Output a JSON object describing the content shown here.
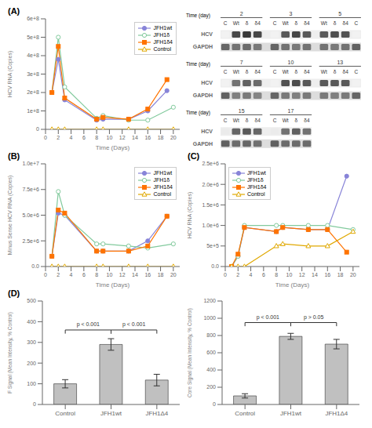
{
  "chart_data": [
    {
      "type": "line",
      "title": "(A)",
      "xlabel": "Time (Days)",
      "ylabel": "HCV RNA (Copies)",
      "xlim": [
        0,
        21
      ],
      "xticks": [
        0,
        2,
        4,
        6,
        8,
        10,
        12,
        14,
        16,
        18,
        20
      ],
      "ylim": [
        0,
        600000000.0
      ],
      "yticks": [
        0,
        {
          "value": 100000000.0,
          "label": "1e+8"
        },
        {
          "value": 200000000.0,
          "label": "2e+8"
        },
        {
          "value": 300000000.0,
          "label": "3e+8"
        },
        {
          "value": 400000000.0,
          "label": "4e+8"
        },
        {
          "value": 500000000.0,
          "label": "5e+8"
        },
        {
          "value": 600000000.0,
          "label": "6e+8"
        }
      ],
      "legend": "upper right",
      "series": [
        {
          "name": "JFH1wt",
          "marker": "circle",
          "x": [
            1,
            2,
            3,
            8,
            9,
            13,
            16,
            19
          ],
          "values": [
            200000000.0,
            380000000.0,
            160000000.0,
            50000000.0,
            55000000.0,
            55000000.0,
            100000000.0,
            210000000.0
          ]
        },
        {
          "name": "JFH1δ",
          "marker": "circle-open",
          "x": [
            1,
            2,
            3,
            8,
            9,
            13,
            16,
            20
          ],
          "values": [
            200000000.0,
            500000000.0,
            230000000.0,
            60000000.0,
            75000000.0,
            50000000.0,
            50000000.0,
            120000000.0
          ]
        },
        {
          "name": "JFH1δ4",
          "marker": "square",
          "x": [
            1,
            2,
            3,
            8,
            9,
            13,
            16,
            19
          ],
          "values": [
            200000000.0,
            450000000.0,
            170000000.0,
            55000000.0,
            65000000.0,
            55000000.0,
            110000000.0,
            270000000.0
          ]
        },
        {
          "name": "Control",
          "marker": "triangle-open",
          "x": [
            1,
            2,
            3,
            8,
            9,
            13,
            16,
            20
          ],
          "values": [
            0,
            0,
            0,
            0,
            0,
            0,
            0,
            0
          ]
        }
      ]
    },
    {
      "type": "gel",
      "title": "Time (day)",
      "groups": [
        {
          "name": "2",
          "categories": [
            "C",
            "Wt",
            "δ",
            "δ4"
          ]
        },
        {
          "name": "3",
          "categories": [
            "C",
            "Wt",
            "δ",
            "δ4"
          ]
        },
        {
          "name": "5",
          "categories": [
            "Wt",
            "δ",
            "δ4",
            "C"
          ]
        }
      ],
      "rows": [
        "HCV",
        "GAPDH"
      ],
      "cells": [
        [
          0.05,
          0.72,
          0.78,
          0.72,
          0.05,
          0.65,
          0.72,
          0.65,
          0.65,
          0.7,
          0.68,
          0.05
        ],
        [
          0.6,
          0.55,
          0.58,
          0.52,
          0.6,
          0.55,
          0.52,
          0.55,
          0.55,
          0.52,
          0.55,
          0.62
        ]
      ]
    },
    {
      "type": "gel",
      "title": "Time (day)",
      "groups": [
        {
          "name": "7",
          "categories": [
            "C",
            "Wt",
            "δ",
            "δ4"
          ]
        },
        {
          "name": "10",
          "categories": [
            "C",
            "Wt",
            "δ",
            "δ4"
          ]
        },
        {
          "name": "13",
          "categories": [
            "Wt",
            "δ",
            "δ4",
            "C"
          ]
        }
      ],
      "rows": [
        "HCV",
        "GAPDH"
      ],
      "cells": [
        [
          0.05,
          0.55,
          0.62,
          0.58,
          0.05,
          0.68,
          0.7,
          0.65,
          0.65,
          0.65,
          0.65,
          0.05
        ],
        [
          0.62,
          0.5,
          0.52,
          0.48,
          0.6,
          0.52,
          0.5,
          0.52,
          0.52,
          0.5,
          0.52,
          0.6
        ]
      ]
    },
    {
      "type": "gel",
      "title": "Time (day)",
      "groups": [
        {
          "name": "15",
          "categories": [
            "C",
            "Wt",
            "δ",
            "δ4"
          ]
        },
        {
          "name": "17",
          "categories": [
            "C",
            "Wt",
            "δ",
            "δ4"
          ]
        }
      ],
      "rows": [
        "HCV",
        "GAPDH"
      ],
      "cells": [
        [
          0.08,
          0.6,
          0.65,
          0.6,
          0.08,
          0.55,
          0.62,
          0.55
        ],
        [
          0.62,
          0.58,
          0.6,
          0.56,
          0.62,
          0.58,
          0.58,
          0.58
        ]
      ]
    },
    {
      "type": "line",
      "title": "(B)",
      "xlabel": "Time (Days)",
      "ylabel": "Minus Sense HCV RNA (Copies)",
      "xlim": [
        0,
        21
      ],
      "xticks": [
        0,
        2,
        4,
        6,
        8,
        10,
        12,
        14,
        16,
        18,
        20
      ],
      "ylim": [
        0,
        10000000.0
      ],
      "yticks": [
        {
          "value": 0,
          "label": "0.0"
        },
        {
          "value": 2500000.0,
          "label": "2.5e+6"
        },
        {
          "value": 5000000.0,
          "label": "5.0e+6"
        },
        {
          "value": 7500000.0,
          "label": "7.5e+6"
        },
        {
          "value": 10000000.0,
          "label": "1.0e+7"
        }
      ],
      "legend": "upper right",
      "series": [
        {
          "name": "JFH1wt",
          "marker": "circle",
          "x": [
            1,
            2,
            3,
            8,
            9,
            13,
            16,
            19
          ],
          "values": [
            1000000.0,
            5200000.0,
            5000000.0,
            1500000.0,
            1500000.0,
            1500000.0,
            2500000.0,
            4900000.0
          ]
        },
        {
          "name": "JFH1δ",
          "marker": "circle-open",
          "x": [
            1,
            2,
            3,
            8,
            9,
            13,
            16,
            20
          ],
          "values": [
            1000000.0,
            7300000.0,
            5000000.0,
            2200000.0,
            2200000.0,
            2000000.0,
            1800000.0,
            2200000.0
          ]
        },
        {
          "name": "JFH1δ4",
          "marker": "square",
          "x": [
            1,
            2,
            3,
            8,
            9,
            13,
            16,
            19
          ],
          "values": [
            1000000.0,
            5500000.0,
            5200000.0,
            1500000.0,
            1500000.0,
            1500000.0,
            2000000.0,
            4900000.0
          ]
        },
        {
          "name": "Control",
          "marker": "triangle-open",
          "x": [
            1,
            2,
            3,
            8,
            9,
            13,
            16,
            20
          ],
          "values": [
            0,
            0,
            0,
            0,
            0,
            0,
            0,
            0
          ]
        }
      ]
    },
    {
      "type": "line",
      "title": "(C)",
      "xlabel": "Time (Days)",
      "ylabel": "HCV RNA (Copies)",
      "xlim": [
        0,
        21
      ],
      "xticks": [
        0,
        2,
        4,
        6,
        8,
        10,
        12,
        14,
        16,
        18,
        20
      ],
      "ylim": [
        0,
        2500000.0
      ],
      "yticks": [
        {
          "value": 0,
          "label": "0.0"
        },
        {
          "value": 500000.0,
          "label": "5e+5"
        },
        {
          "value": 1000000.0,
          "label": "1.0e+6"
        },
        {
          "value": 1500000.0,
          "label": "1.5e+6"
        },
        {
          "value": 2000000.0,
          "label": "2.0e+6"
        },
        {
          "value": 2500000.0,
          "label": "2.5e+6"
        }
      ],
      "legend": "upper left",
      "series": [
        {
          "name": "JFH1wt",
          "marker": "circle",
          "x": [
            1,
            2,
            3,
            8,
            9,
            13,
            16,
            19
          ],
          "values": [
            0,
            250000.0,
            950000.0,
            850000.0,
            950000.0,
            900000.0,
            900000.0,
            2200000.0
          ]
        },
        {
          "name": "JFH1δ",
          "marker": "circle-open",
          "x": [
            1,
            2,
            3,
            8,
            9,
            13,
            16,
            20
          ],
          "values": [
            0,
            250000.0,
            1000000.0,
            1000000.0,
            1000000.0,
            1000000.0,
            1000000.0,
            900000.0
          ]
        },
        {
          "name": "JFH1δ4",
          "marker": "square",
          "x": [
            1,
            2,
            3,
            8,
            9,
            13,
            16,
            19
          ],
          "values": [
            0,
            300000.0,
            950000.0,
            850000.0,
            950000.0,
            900000.0,
            900000.0,
            350000.0
          ]
        },
        {
          "name": "Control",
          "marker": "triangle-open",
          "x": [
            1,
            2,
            3,
            8,
            9,
            13,
            16,
            20
          ],
          "values": [
            0,
            0,
            0,
            500000.0,
            550000.0,
            500000.0,
            500000.0,
            850000.0
          ]
        }
      ]
    },
    {
      "type": "bar",
      "title": "(D)",
      "ylabel": "F Signal (Mean Intensity, % Control)",
      "categories": [
        "Control",
        "JFH1wt",
        "JFH1Δ4"
      ],
      "values": [
        100,
        290,
        118
      ],
      "errors": [
        20,
        28,
        28
      ],
      "color": "#c0c0c0",
      "ylim": [
        0,
        500
      ],
      "yticks": [
        0,
        100,
        200,
        300,
        400,
        500
      ],
      "annotations": [
        {
          "text": "p < 0.001",
          "x": [
            "Control",
            "JFH1wt"
          ],
          "y": 360
        },
        {
          "text": "p < 0.001",
          "x": [
            "JFH1wt",
            "JFH1Δ4"
          ],
          "y": 360
        }
      ]
    },
    {
      "type": "bar",
      "ylabel": "Core Signal (Mean Intensity, % Control)",
      "categories": [
        "Control",
        "JFH1wt",
        "JFH1Δ4"
      ],
      "values": [
        100,
        790,
        700
      ],
      "errors": [
        25,
        35,
        55
      ],
      "color": "#c0c0c0",
      "ylim": [
        0,
        1200
      ],
      "yticks": [
        0,
        200,
        400,
        600,
        800,
        1000,
        1200
      ],
      "annotations": [
        {
          "text": "p < 0.001",
          "x": [
            "Control",
            "JFH1wt"
          ],
          "y": 950
        },
        {
          "text": "p > 0.05",
          "x": [
            "JFH1wt",
            "JFH1Δ4"
          ],
          "y": 950
        }
      ]
    }
  ]
}
